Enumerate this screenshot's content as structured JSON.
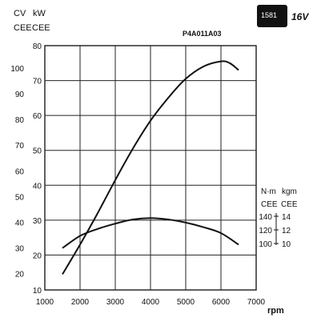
{
  "header": {
    "code": "P4A011A03",
    "badge": "1581",
    "version": "16V"
  },
  "units": {
    "cv": "CV",
    "kw": "kW",
    "cee_left1": "CEE",
    "cee_left2": "CEE",
    "nm": "N·m",
    "kgm": "kgm",
    "cee_right1": "CEE",
    "cee_right2": "CEE"
  },
  "chart_data": {
    "type": "line",
    "xlabel": "rpm",
    "xlim": [
      1000,
      7000
    ],
    "x_ticks": [
      "1000",
      "2000",
      "3000",
      "4000",
      "5000",
      "6000",
      "7000"
    ],
    "kw_lim": [
      10,
      80
    ],
    "kw_ticks": [
      "10",
      "20",
      "30",
      "40",
      "50",
      "60",
      "70",
      "80"
    ],
    "cv_ticks": [
      "20",
      "30",
      "40",
      "50",
      "60",
      "70",
      "80",
      "90",
      "100"
    ],
    "nm_ticks": [
      "100",
      "120",
      "140"
    ],
    "kgm_ticks": [
      "10",
      "12",
      "14"
    ],
    "grid": true,
    "series": [
      {
        "kind": "power_kw",
        "x": [
          1500,
          2000,
          2500,
          3000,
          3500,
          4000,
          4500,
          5000,
          5500,
          6000,
          6250,
          6500
        ],
        "y": [
          14.5,
          23,
          32,
          41.5,
          50.5,
          58.5,
          65,
          70.5,
          74,
          75.5,
          75,
          73
        ]
      },
      {
        "kind": "torque_kw_scale",
        "x": [
          1500,
          2000,
          2500,
          3000,
          3500,
          4000,
          4500,
          5000,
          5500,
          6000,
          6500
        ],
        "y": [
          22,
          25.5,
          27.5,
          29,
          30.2,
          30.6,
          30.2,
          29.3,
          28,
          26.3,
          23
        ]
      }
    ]
  }
}
